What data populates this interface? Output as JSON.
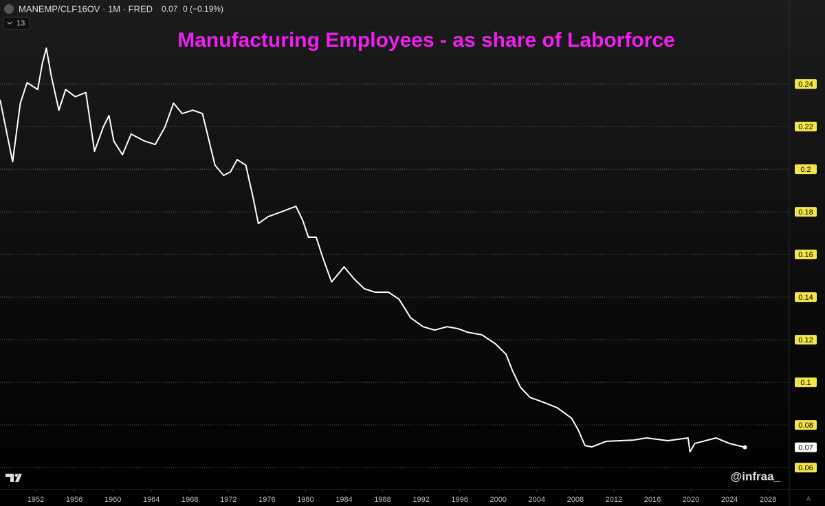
{
  "header": {
    "symbol": "MANEMP/CLF16OV · 1M · FRED",
    "last": "0.07",
    "change": "0 (−0.19%)",
    "indicator_count": "13",
    "watermark": "@infraa_",
    "scale_mode": "A"
  },
  "chart_data": {
    "type": "line",
    "title": "Manufacturing Employees - as share of Laborforce",
    "x": [
      1948.3,
      1949.6,
      1950.4,
      1951.1,
      1952.2,
      1952.7,
      1953.1,
      1953.6,
      1954.4,
      1955.1,
      1956.1,
      1957.2,
      1958.1,
      1959.0,
      1959.6,
      1960.1,
      1961.0,
      1961.9,
      1963.3,
      1964.4,
      1965.4,
      1966.3,
      1967.2,
      1968.3,
      1969.3,
      1970.6,
      1971.5,
      1972.2,
      1972.9,
      1973.8,
      1974.6,
      1975.1,
      1976.1,
      1977.5,
      1979.0,
      1979.7,
      1980.3,
      1981.1,
      1981.8,
      1982.7,
      1983.3,
      1984.0,
      1985.0,
      1986.1,
      1987.2,
      1988.6,
      1989.7,
      1990.9,
      1992.2,
      1993.4,
      1994.7,
      1995.8,
      1996.8,
      1998.3,
      1999.7,
      2000.8,
      2001.5,
      2002.3,
      2003.3,
      2004.7,
      2006.1,
      2007.6,
      2008.3,
      2009.0,
      2009.7,
      2011.2,
      2014.0,
      2015.4,
      2017.6,
      2019.7,
      2019.9,
      2020.4,
      2022.6,
      2024.0,
      2025.6
    ],
    "series": [
      {
        "name": "MANEMP/CLF16OV",
        "color": "#ffffff",
        "values": [
          0.2326,
          0.2035,
          0.231,
          0.2406,
          0.2374,
          0.25,
          0.2568,
          0.244,
          0.2277,
          0.2374,
          0.234,
          0.236,
          0.2084,
          0.2197,
          0.2252,
          0.2132,
          0.2068,
          0.2165,
          0.2132,
          0.2116,
          0.2197,
          0.231,
          0.2261,
          0.2277,
          0.2261,
          0.2019,
          0.1971,
          0.1987,
          0.2045,
          0.2019,
          0.1858,
          0.1745,
          0.1777,
          0.18,
          0.1826,
          0.1761,
          0.1681,
          0.1681,
          0.1584,
          0.1471,
          0.1503,
          0.1542,
          0.1487,
          0.1439,
          0.1423,
          0.1423,
          0.139,
          0.1303,
          0.1261,
          0.1245,
          0.1261,
          0.1252,
          0.1235,
          0.1223,
          0.1181,
          0.1132,
          0.1052,
          0.0977,
          0.0929,
          0.0906,
          0.0881,
          0.0832,
          0.0777,
          0.0703,
          0.0697,
          0.0723,
          0.0729,
          0.0739,
          0.0726,
          0.0739,
          0.0674,
          0.0713,
          0.0739,
          0.0713,
          0.0695
        ],
        "last_label": "0.07"
      }
    ],
    "xlim": [
      1948.29,
      2030.2
    ],
    "xticks": [
      1952,
      1956,
      1960,
      1964,
      1968,
      1972,
      1976,
      1980,
      1984,
      1988,
      1992,
      1996,
      2000,
      2004,
      2008,
      2012,
      2016,
      2020,
      2024,
      2028
    ],
    "ylim": [
      0.0497,
      0.2794
    ],
    "yticks": [
      0.24,
      0.22,
      0.2,
      0.18,
      0.16,
      0.14,
      0.12,
      0.1,
      0.08,
      0.06
    ],
    "grid": true,
    "tick_box_color": "#f2e54b",
    "title_color": "#f01ef0"
  }
}
